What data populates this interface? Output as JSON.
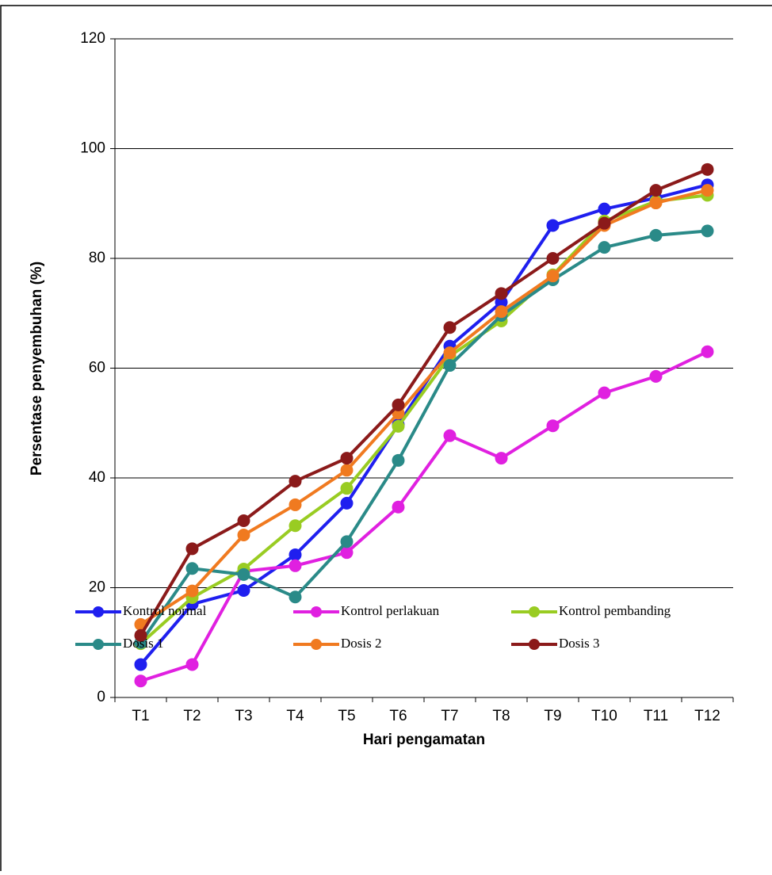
{
  "chart_data": {
    "type": "line",
    "x_label": "Hari pengamatan",
    "y_label": "Persentase penyembuhan (%)",
    "categories": [
      "T1",
      "T2",
      "T3",
      "T4",
      "T5",
      "T6",
      "T7",
      "T8",
      "T9",
      "T10",
      "T11",
      "T12"
    ],
    "ylim": [
      0,
      120
    ],
    "yticks": [
      0,
      20,
      40,
      60,
      80,
      100,
      120
    ],
    "grid": true,
    "legend_position": "bottom",
    "series": [
      {
        "name": "Kontrol normal",
        "color": "#1f1fef",
        "values": [
          6,
          17,
          19.5,
          26,
          35.4,
          49.7,
          64,
          72,
          86,
          89,
          91,
          93.4
        ]
      },
      {
        "name": "Kontrol perlakuan",
        "color": "#e020e0",
        "values": [
          3,
          6,
          23,
          24,
          26.4,
          34.7,
          47.7,
          43.6,
          49.5,
          55.5,
          58.5,
          63
        ]
      },
      {
        "name": "Kontrol pembanding",
        "color": "#99cc22",
        "values": [
          9.8,
          18.2,
          23.4,
          31.3,
          38.1,
          49.4,
          62.2,
          68.6,
          77,
          86.8,
          90.4,
          91.5
        ]
      },
      {
        "name": "Dosis 1",
        "color": "#2a8a88",
        "values": [
          10,
          23.5,
          22.4,
          18.3,
          28.4,
          43.2,
          60.5,
          69.6,
          76.1,
          82,
          84.2,
          85
        ]
      },
      {
        "name": "Dosis 2",
        "color": "#f07a20",
        "values": [
          13.3,
          19.4,
          29.6,
          35.1,
          41.4,
          51.8,
          62.8,
          70.3,
          76.8,
          86,
          90.1,
          92.4
        ]
      },
      {
        "name": "Dosis 3",
        "color": "#8b1a1a",
        "values": [
          11.3,
          27.1,
          32.2,
          39.4,
          43.6,
          53.3,
          67.4,
          73.6,
          80,
          86.4,
          92.4,
          96.2
        ]
      }
    ]
  }
}
